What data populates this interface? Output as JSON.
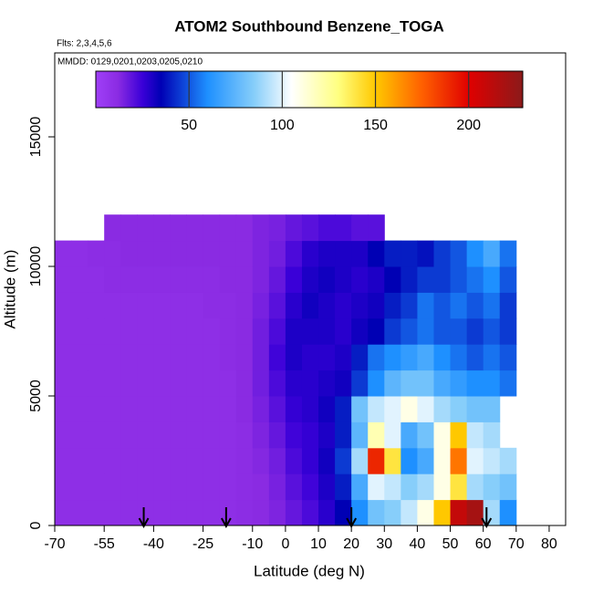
{
  "chart_data": {
    "type": "heatmap",
    "title": "ATOM2 Southbound Benzene_TOGA",
    "subtitle": "Flts: 2,3,4,5,6",
    "annotation": "MMDD: 0129,0201,0203,0205,0210",
    "xlabel": "Latitude (deg N)",
    "ylabel": "Altitude (m)",
    "xlim": [
      -70,
      85
    ],
    "ylim": [
      0,
      18240
    ],
    "xticks": [
      -70,
      -55,
      -40,
      -25,
      -10,
      0,
      10,
      20,
      30,
      40,
      50,
      60,
      70,
      80
    ],
    "yticks": [
      0,
      5000,
      10000,
      15000
    ],
    "x_edges": [
      -70,
      -65,
      -60,
      -55,
      -50,
      -45,
      -40,
      -35,
      -30,
      -25,
      -20,
      -15,
      -10,
      -5,
      0,
      5,
      10,
      15,
      20,
      25,
      30,
      35,
      40,
      45,
      50,
      55,
      60,
      65,
      70
    ],
    "y_edges": [
      0,
      1000,
      2000,
      3000,
      4000,
      5000,
      6000,
      7000,
      8000,
      9000,
      10000,
      11000,
      12000
    ],
    "values": [
      [
        10,
        10,
        10,
        10,
        10,
        10,
        10,
        10,
        10,
        10,
        10,
        11,
        12,
        14,
        18,
        22,
        28,
        35,
        60,
        80,
        85,
        95,
        110,
        150,
        210,
        220,
        90,
        60
      ],
      [
        10,
        10,
        10,
        10,
        10,
        10,
        10,
        10,
        10,
        10,
        10,
        11,
        12,
        15,
        20,
        24,
        30,
        40,
        70,
        100,
        95,
        85,
        90,
        110,
        140,
        90,
        85,
        80
      ],
      [
        10,
        10,
        10,
        10,
        10,
        10,
        10,
        10,
        10,
        10,
        10,
        11,
        13,
        16,
        22,
        26,
        32,
        45,
        90,
        190,
        140,
        60,
        70,
        110,
        170,
        100,
        95,
        90
      ],
      [
        10,
        10,
        10,
        10,
        10,
        10,
        10,
        10,
        10,
        10,
        10,
        11,
        14,
        18,
        24,
        26,
        30,
        40,
        75,
        120,
        100,
        70,
        80,
        110,
        150,
        95,
        90,
        null
      ],
      [
        10,
        10,
        10,
        10,
        10,
        10,
        10,
        10,
        10,
        10,
        10,
        12,
        15,
        20,
        26,
        28,
        32,
        40,
        80,
        95,
        100,
        110,
        100,
        90,
        85,
        80,
        80,
        null
      ],
      [
        10,
        10,
        10,
        10,
        10,
        10,
        10,
        10,
        10,
        10,
        10,
        12,
        16,
        22,
        28,
        28,
        30,
        32,
        45,
        60,
        75,
        80,
        80,
        70,
        65,
        60,
        60,
        55
      ],
      [
        10,
        10,
        10,
        10,
        10,
        10,
        10,
        10,
        10,
        10,
        11,
        12,
        16,
        24,
        30,
        28,
        28,
        30,
        40,
        55,
        60,
        65,
        70,
        60,
        55,
        50,
        55,
        50
      ],
      [
        10,
        10,
        10,
        10,
        10,
        10,
        10,
        10,
        10,
        10,
        11,
        12,
        16,
        22,
        30,
        30,
        30,
        28,
        32,
        35,
        45,
        50,
        55,
        50,
        50,
        45,
        50,
        45
      ],
      [
        10,
        10,
        10,
        10,
        10,
        10,
        10,
        10,
        10,
        11,
        11,
        12,
        15,
        20,
        28,
        32,
        30,
        28,
        30,
        32,
        40,
        45,
        55,
        50,
        55,
        50,
        55,
        45
      ],
      [
        10,
        10,
        10,
        11,
        11,
        11,
        11,
        11,
        11,
        11,
        12,
        12,
        14,
        18,
        25,
        30,
        32,
        30,
        28,
        30,
        35,
        40,
        45,
        45,
        50,
        55,
        60,
        50
      ],
      [
        10,
        10,
        11,
        11,
        12,
        12,
        12,
        12,
        12,
        12,
        12,
        12,
        14,
        16,
        22,
        28,
        30,
        30,
        30,
        35,
        40,
        40,
        38,
        45,
        50,
        60,
        70,
        55
      ],
      [
        null,
        null,
        null,
        12,
        12,
        12,
        12,
        12,
        12,
        12,
        12,
        12,
        14,
        15,
        18,
        20,
        22,
        22,
        20,
        20,
        null,
        null,
        null,
        null,
        null,
        null,
        null,
        null
      ]
    ],
    "clim": [
      0,
      229
    ],
    "cticks": [
      50,
      100,
      150,
      200
    ],
    "colorscale": [
      [
        0,
        "#a040f8"
      ],
      [
        12,
        "#8a2be2"
      ],
      [
        25,
        "#3a00d8"
      ],
      [
        35,
        "#0000b4"
      ],
      [
        60,
        "#1e90ff"
      ],
      [
        85,
        "#87cefa"
      ],
      [
        105,
        "#ffffff"
      ],
      [
        130,
        "#ffff80"
      ],
      [
        150,
        "#ffc800"
      ],
      [
        175,
        "#ff6000"
      ],
      [
        200,
        "#e00000"
      ],
      [
        229,
        "#8b1a1a"
      ]
    ],
    "arrows": [
      -43,
      -18,
      20,
      61
    ]
  }
}
